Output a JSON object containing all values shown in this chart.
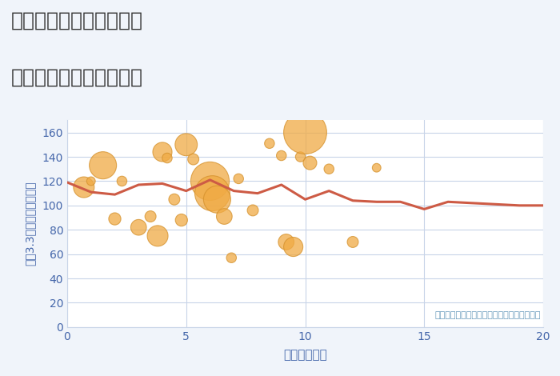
{
  "title_line1": "福岡県福岡市南区高宮の",
  "title_line2": "駅距離別中古戸建て価格",
  "xlabel": "駅距離（分）",
  "ylabel": "坪（3.3㎡）単価（万円）",
  "annotation": "円の大きさは、取引のあった物件面積を示す",
  "fig_bg_color": "#f0f4fa",
  "plot_bg_color": "#ffffff",
  "xlim": [
    0,
    20
  ],
  "ylim": [
    0,
    170
  ],
  "yticks": [
    0,
    20,
    40,
    60,
    80,
    100,
    120,
    140,
    160
  ],
  "xticks": [
    0,
    5,
    10,
    15,
    20
  ],
  "line_x": [
    0,
    1,
    2,
    3,
    4,
    5,
    6,
    7,
    8,
    9,
    10,
    11,
    12,
    13,
    14,
    15,
    16,
    17,
    18,
    19,
    20
  ],
  "line_y": [
    119,
    111,
    109,
    117,
    118,
    112,
    121,
    112,
    110,
    117,
    105,
    112,
    104,
    103,
    103,
    97,
    103,
    102,
    101,
    100,
    100
  ],
  "line_color": "#cd5b45",
  "line_width": 2.2,
  "scatter_x": [
    0.7,
    1.0,
    1.5,
    2.0,
    2.3,
    3.0,
    3.5,
    3.8,
    4.0,
    4.2,
    4.5,
    4.8,
    5.0,
    5.3,
    6.0,
    6.1,
    6.3,
    6.6,
    6.9,
    7.2,
    7.8,
    8.5,
    9.0,
    9.2,
    9.5,
    9.8,
    10.0,
    10.2,
    11.0,
    12.0,
    13.0
  ],
  "scatter_y": [
    115,
    120,
    133,
    89,
    120,
    82,
    91,
    75,
    144,
    139,
    105,
    88,
    150,
    138,
    120,
    110,
    105,
    91,
    57,
    122,
    96,
    151,
    141,
    70,
    66,
    140,
    160,
    135,
    130,
    70,
    131
  ],
  "scatter_size": [
    350,
    60,
    600,
    120,
    80,
    200,
    100,
    350,
    300,
    80,
    100,
    120,
    400,
    100,
    1200,
    1000,
    600,
    200,
    80,
    80,
    100,
    80,
    80,
    200,
    300,
    80,
    1500,
    150,
    80,
    100,
    60
  ],
  "scatter_color": "#f0aa44",
  "scatter_alpha": 0.75,
  "scatter_edgecolor": "#d4902a",
  "scatter_linewidth": 0.8,
  "title_color": "#333333",
  "title_fontsize": 18,
  "axis_label_color": "#4466aa",
  "tick_color": "#4466aa",
  "grid_color": "#c8d4e8",
  "annotation_color": "#6699bb"
}
